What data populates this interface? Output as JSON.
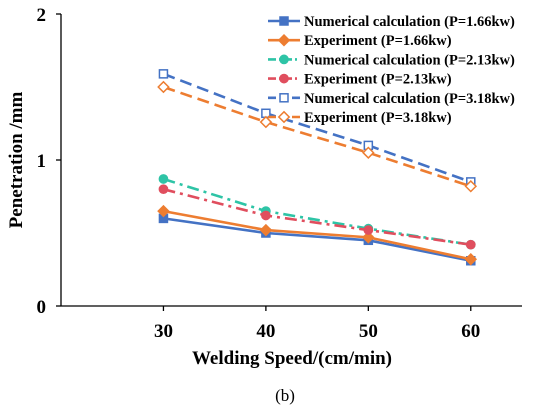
{
  "chart_data": {
    "type": "line",
    "title": "",
    "caption": "(b)",
    "xlabel": "Welding Speed/(cm/min)",
    "ylabel": "Penetration /mm",
    "x": [
      30,
      40,
      50,
      60
    ],
    "x_tick_labels": [
      "30",
      "40",
      "50",
      "60"
    ],
    "xlim": [
      20,
      65
    ],
    "ylim": [
      0,
      2
    ],
    "y_ticks": [
      0,
      1,
      2
    ],
    "y_tick_labels": [
      "0",
      "1",
      "2"
    ],
    "grid": false,
    "legend_position": "top-right",
    "series": [
      {
        "name": "Numerical calculation (P=1.66kw)",
        "values": [
          0.6,
          0.5,
          0.45,
          0.31
        ],
        "color": "#4472C4",
        "line_style": "solid",
        "marker": "filled-square"
      },
      {
        "name": "Experiment (P=1.66kw)",
        "values": [
          0.65,
          0.52,
          0.47,
          0.32
        ],
        "color": "#ED7D31",
        "line_style": "solid",
        "marker": "filled-diamond"
      },
      {
        "name": "Numerical calculation (P=2.13kw)",
        "values": [
          0.87,
          0.65,
          0.53,
          0.42
        ],
        "color": "#2EC4A6",
        "line_style": "dash-dot",
        "marker": "filled-circle"
      },
      {
        "name": "Experiment (P=2.13kw)",
        "values": [
          0.8,
          0.62,
          0.52,
          0.42
        ],
        "color": "#E04E5E",
        "line_style": "dash-dot",
        "marker": "filled-circle"
      },
      {
        "name": "Numerical calculation (P=3.18kw)",
        "values": [
          1.59,
          1.32,
          1.1,
          0.85
        ],
        "color": "#4472C4",
        "line_style": "dashed",
        "marker": "open-square"
      },
      {
        "name": "Experiment (P=3.18kw)",
        "values": [
          1.5,
          1.26,
          1.05,
          0.82
        ],
        "color": "#ED7D31",
        "line_style": "dashed",
        "marker": "open-diamond"
      }
    ]
  }
}
